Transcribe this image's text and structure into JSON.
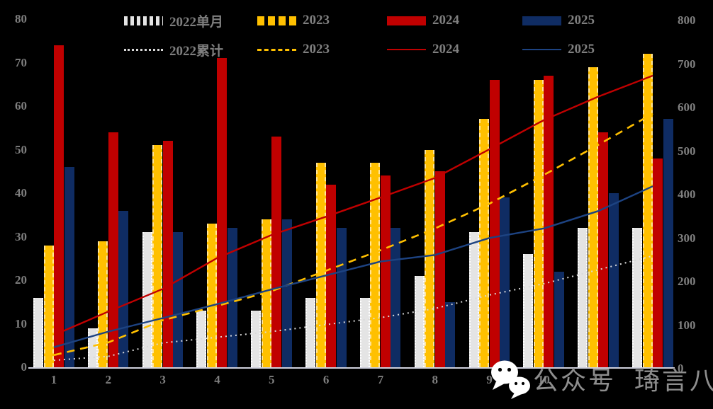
{
  "chart_data": {
    "type": "bar",
    "subtype": "grouped-bars-with-cumulative-lines",
    "title": "",
    "xlabel": "",
    "ylabel_left": "",
    "ylabel_right": "",
    "grid": false,
    "legend_position": "top",
    "background": "#000000",
    "categories": [
      "1",
      "2",
      "3",
      "4",
      "5",
      "6",
      "7",
      "8",
      "9",
      "10",
      "11",
      "12"
    ],
    "left_axis": {
      "min": 0,
      "max": 80,
      "ticks": [
        0,
        10,
        20,
        30,
        40,
        50,
        60,
        70,
        80
      ]
    },
    "right_axis": {
      "min": 0,
      "max": 800,
      "ticks": [
        0,
        100,
        200,
        300,
        400,
        500,
        600,
        700,
        800
      ]
    },
    "bar_series": [
      {
        "name": "2022单月",
        "color": "#e4e4e4",
        "edge": "dotted",
        "edge_color": "#ffffff",
        "values": [
          16,
          9,
          31,
          13,
          13,
          16,
          16,
          21,
          31,
          26,
          32,
          32
        ]
      },
      {
        "name": "2023",
        "color": "#ffc000",
        "edge": "dashed",
        "edge_color": "#ffe49a",
        "values": [
          28,
          29,
          51,
          33,
          34,
          47,
          47,
          50,
          57,
          66,
          69,
          72
        ]
      },
      {
        "name": "2024",
        "color": "#c00000",
        "edge": "solid",
        "edge_color": "#c00000",
        "values": [
          74,
          54,
          52,
          71,
          53,
          42,
          44,
          45,
          66,
          67,
          54,
          48
        ]
      },
      {
        "name": "2025",
        "color": "#0f2c63",
        "edge": "solid",
        "edge_color": "#0f2c63",
        "values": [
          46,
          36,
          31,
          32,
          34,
          32,
          32,
          15,
          39,
          22,
          40,
          57
        ]
      }
    ],
    "line_series": [
      {
        "name": "2022累计",
        "color": "#d9d9d9",
        "dash": "dotted",
        "width": 2,
        "values": [
          16,
          25,
          56,
          69,
          82,
          98,
          114,
          135,
          166,
          192,
          224,
          256
        ]
      },
      {
        "name": "2023",
        "color": "#ffc000",
        "dash": "dashed",
        "width": 2.6,
        "values": [
          28,
          57,
          108,
          141,
          175,
          222,
          269,
          319,
          376,
          442,
          511,
          583
        ]
      },
      {
        "name": "2024",
        "color": "#c00000",
        "dash": "solid",
        "width": 2.4,
        "values": [
          74,
          128,
          180,
          251,
          304,
          346,
          390,
          435,
          501,
          568,
          622,
          670
        ]
      },
      {
        "name": "2025",
        "color": "#1d4382",
        "dash": "solid",
        "width": 2.4,
        "values": [
          46,
          82,
          113,
          145,
          179,
          211,
          243,
          258,
          297,
          319,
          359,
          416
        ]
      }
    ]
  },
  "legend": {
    "bar_row": [
      "2022单月",
      "2023",
      "2024",
      "2025"
    ],
    "line_row": [
      "2022累计",
      "2023",
      "2024",
      "2025"
    ]
  },
  "watermark": {
    "icon": "wechat-icon",
    "text1": "公众号",
    "text2": "琦言八语"
  }
}
